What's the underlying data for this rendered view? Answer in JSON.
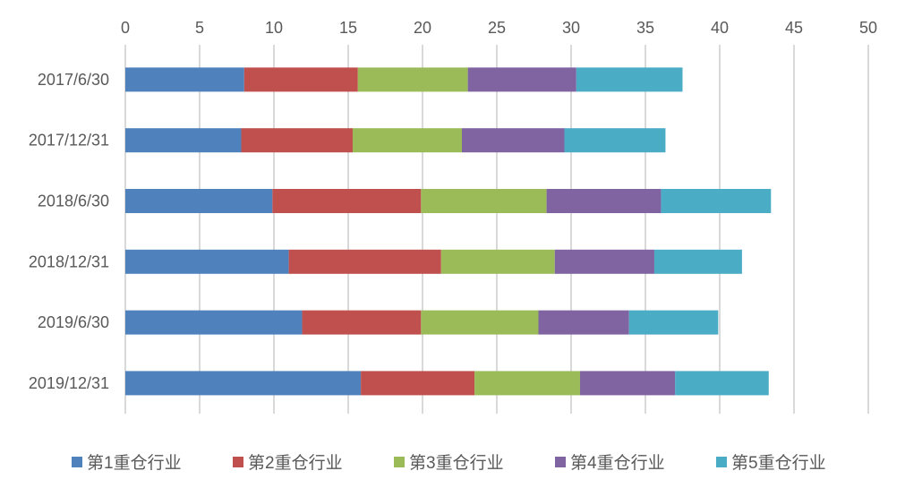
{
  "chart_data": {
    "type": "bar",
    "orientation": "horizontal",
    "stacked": true,
    "title": "",
    "xlabel": "",
    "ylabel": "",
    "xlim": [
      0,
      50
    ],
    "xticks": [
      "0",
      "5",
      "10",
      "15",
      "20",
      "25",
      "30",
      "35",
      "40",
      "45",
      "50"
    ],
    "grid": true,
    "legend_position": "bottom",
    "categories": [
      "2017/6/30",
      "2017/12/31",
      "2018/6/30",
      "2018/12/31",
      "2019/6/30",
      "2019/12/31"
    ],
    "series": [
      {
        "name": "第1重仓行业",
        "color": "#4F81BD",
        "values": [
          8.0,
          7.8,
          9.9,
          11.0,
          11.9,
          15.85
        ]
      },
      {
        "name": "第2重仓行业",
        "color": "#C0504D",
        "values": [
          7.65,
          7.5,
          10.0,
          10.25,
          8.0,
          7.65
        ]
      },
      {
        "name": "第3重仓行业",
        "color": "#9BBB59",
        "values": [
          7.4,
          7.35,
          8.45,
          7.65,
          7.9,
          7.1
        ]
      },
      {
        "name": "第4重仓行业",
        "color": "#8064A2",
        "values": [
          7.3,
          6.9,
          7.7,
          6.7,
          6.1,
          6.4
        ]
      },
      {
        "name": "第5重仓行业",
        "color": "#4BACC6",
        "values": [
          7.15,
          6.8,
          7.4,
          5.9,
          6.0,
          6.3
        ]
      }
    ]
  }
}
